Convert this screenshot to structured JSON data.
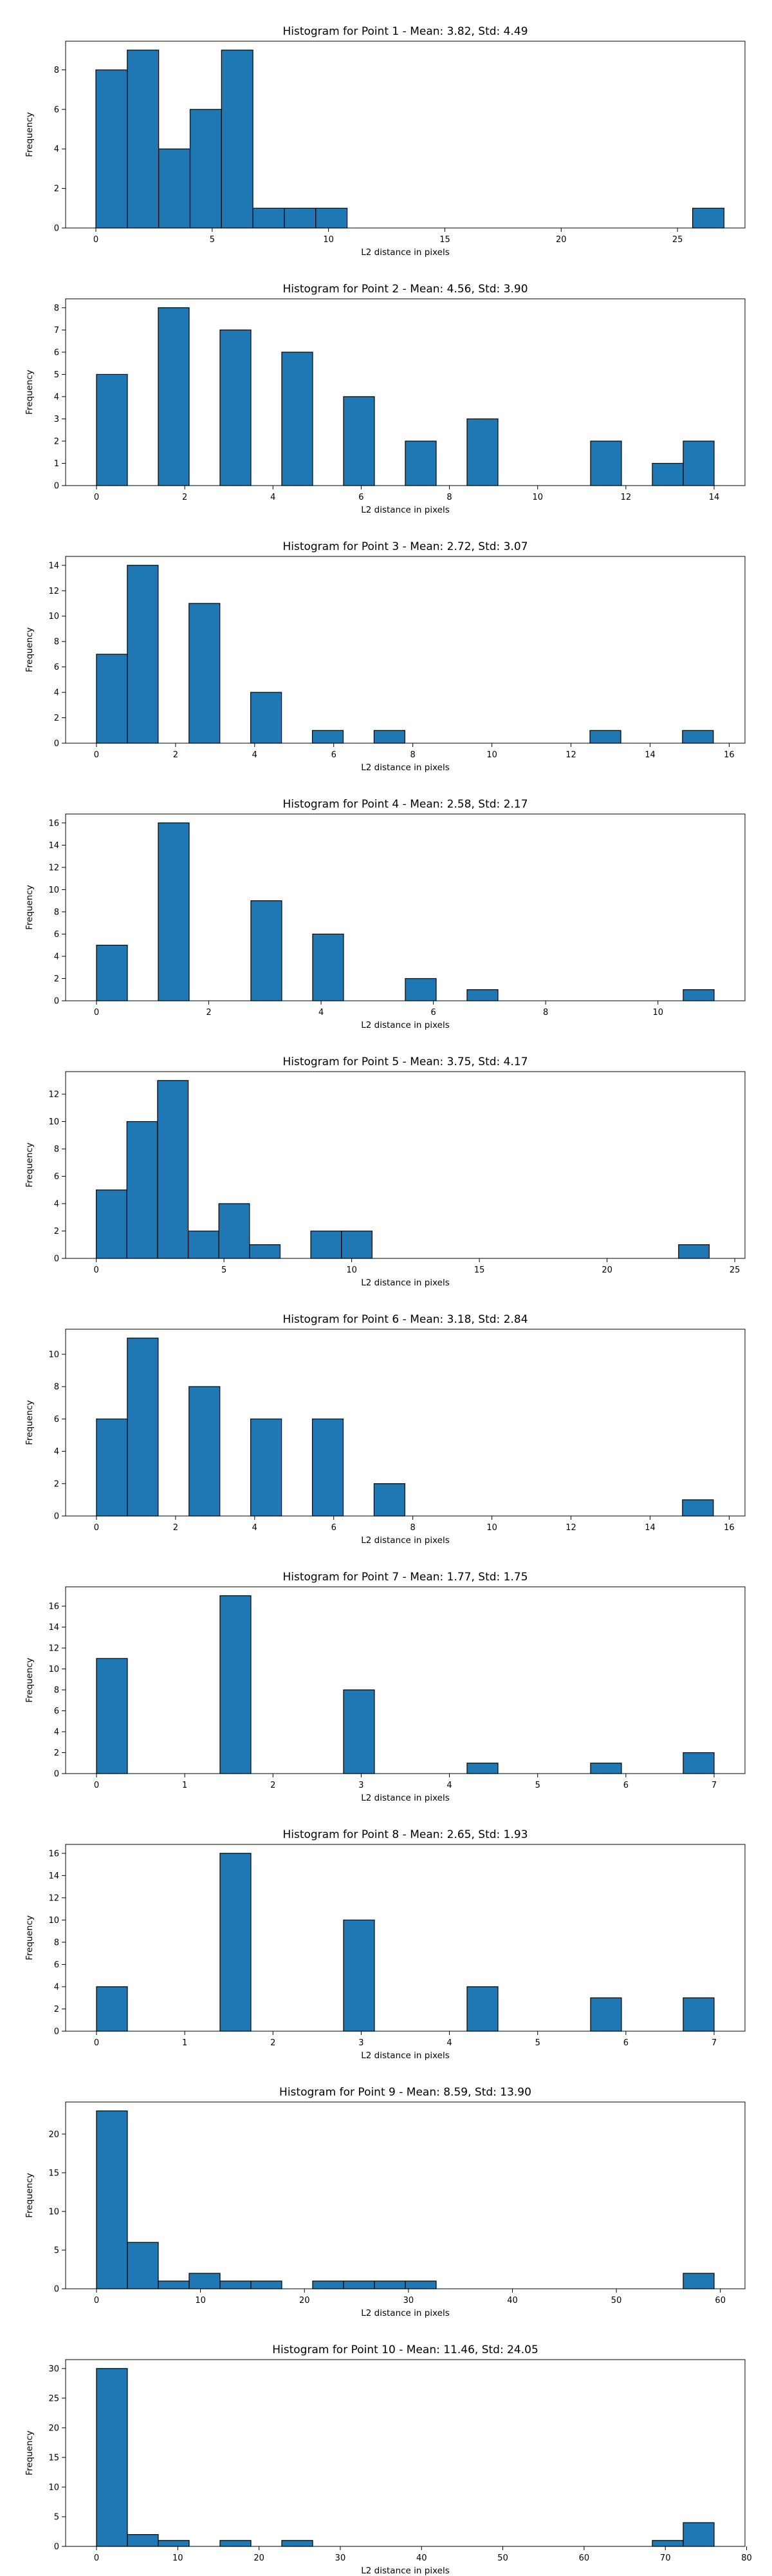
{
  "chart_data": [
    {
      "type": "bar",
      "title": "Histogram for Point 1 - Mean: 3.82, Std: 4.49",
      "xlabel": "L2 distance in pixels",
      "ylabel": "Frequency",
      "xlim": [
        -1.3,
        27.9
      ],
      "ylim": [
        0,
        9.45
      ],
      "xticks": [
        0,
        5,
        10,
        15,
        20,
        25
      ],
      "yticks": [
        0,
        2,
        4,
        6,
        8
      ],
      "bins": [
        {
          "x0": 0,
          "x1": 1.35,
          "count": 8
        },
        {
          "x0": 1.35,
          "x1": 2.7,
          "count": 9
        },
        {
          "x0": 2.7,
          "x1": 4.05,
          "count": 4
        },
        {
          "x0": 4.05,
          "x1": 5.4,
          "count": 6
        },
        {
          "x0": 5.4,
          "x1": 6.75,
          "count": 9
        },
        {
          "x0": 6.75,
          "x1": 8.1,
          "count": 1
        },
        {
          "x0": 8.1,
          "x1": 9.45,
          "count": 1
        },
        {
          "x0": 9.45,
          "x1": 10.8,
          "count": 1
        },
        {
          "x0": 25.65,
          "x1": 27.0,
          "count": 1
        }
      ]
    },
    {
      "type": "bar",
      "title": "Histogram for Point 2 - Mean: 4.56, Std: 3.90",
      "xlabel": "L2 distance in pixels",
      "ylabel": "Frequency",
      "xlim": [
        -0.7,
        14.7
      ],
      "ylim": [
        0,
        8.4
      ],
      "xticks": [
        0,
        2,
        4,
        6,
        8,
        10,
        12,
        14
      ],
      "yticks": [
        0,
        1,
        2,
        3,
        4,
        5,
        6,
        7,
        8
      ],
      "bins": [
        {
          "x0": 0,
          "x1": 0.7,
          "count": 5
        },
        {
          "x0": 1.4,
          "x1": 2.1,
          "count": 8
        },
        {
          "x0": 2.8,
          "x1": 3.5,
          "count": 7
        },
        {
          "x0": 4.2,
          "x1": 4.9,
          "count": 6
        },
        {
          "x0": 5.6,
          "x1": 6.3,
          "count": 4
        },
        {
          "x0": 7.0,
          "x1": 7.7,
          "count": 2
        },
        {
          "x0": 8.4,
          "x1": 9.1,
          "count": 3
        },
        {
          "x0": 11.2,
          "x1": 11.9,
          "count": 2
        },
        {
          "x0": 12.6,
          "x1": 13.3,
          "count": 1
        },
        {
          "x0": 13.3,
          "x1": 14.0,
          "count": 2
        }
      ]
    },
    {
      "type": "bar",
      "title": "Histogram for Point 3 - Mean: 2.72, Std: 3.07",
      "xlabel": "L2 distance in pixels",
      "ylabel": "Frequency",
      "xlim": [
        -0.78,
        16.4
      ],
      "ylim": [
        0,
        14.7
      ],
      "xticks": [
        0,
        2,
        4,
        6,
        8,
        10,
        12,
        14,
        16
      ],
      "yticks": [
        0,
        2,
        4,
        6,
        8,
        10,
        12,
        14
      ],
      "bins": [
        {
          "x0": 0,
          "x1": 0.78,
          "count": 7
        },
        {
          "x0": 0.78,
          "x1": 1.56,
          "count": 14
        },
        {
          "x0": 2.34,
          "x1": 3.12,
          "count": 11
        },
        {
          "x0": 3.9,
          "x1": 4.68,
          "count": 4
        },
        {
          "x0": 5.46,
          "x1": 6.24,
          "count": 1
        },
        {
          "x0": 7.02,
          "x1": 7.8,
          "count": 1
        },
        {
          "x0": 12.48,
          "x1": 13.26,
          "count": 1
        },
        {
          "x0": 14.82,
          "x1": 15.6,
          "count": 1
        }
      ]
    },
    {
      "type": "bar",
      "title": "Histogram for Point 4 - Mean: 2.58, Std: 2.17",
      "xlabel": "L2 distance in pixels",
      "ylabel": "Frequency",
      "xlim": [
        -0.55,
        11.55
      ],
      "ylim": [
        0,
        16.8
      ],
      "xticks": [
        0,
        2,
        4,
        6,
        8,
        10
      ],
      "yticks": [
        0,
        2,
        4,
        6,
        8,
        10,
        12,
        14,
        16
      ],
      "bins": [
        {
          "x0": 0,
          "x1": 0.55,
          "count": 5
        },
        {
          "x0": 1.1,
          "x1": 1.65,
          "count": 16
        },
        {
          "x0": 2.75,
          "x1": 3.3,
          "count": 9
        },
        {
          "x0": 3.85,
          "x1": 4.4,
          "count": 6
        },
        {
          "x0": 5.5,
          "x1": 6.05,
          "count": 2
        },
        {
          "x0": 6.6,
          "x1": 7.15,
          "count": 1
        },
        {
          "x0": 10.45,
          "x1": 11.0,
          "count": 1
        }
      ]
    },
    {
      "type": "bar",
      "title": "Histogram for Point 5 - Mean: 3.75, Std: 4.17",
      "xlabel": "L2 distance in pixels",
      "ylabel": "Frequency",
      "xlim": [
        -1.2,
        25.4
      ],
      "ylim": [
        0,
        13.65
      ],
      "xticks": [
        0,
        5,
        10,
        15,
        20,
        25
      ],
      "yticks": [
        0,
        2,
        4,
        6,
        8,
        10,
        12
      ],
      "bins": [
        {
          "x0": 0,
          "x1": 1.2,
          "count": 5
        },
        {
          "x0": 1.2,
          "x1": 2.4,
          "count": 10
        },
        {
          "x0": 2.4,
          "x1": 3.6,
          "count": 13
        },
        {
          "x0": 3.6,
          "x1": 4.8,
          "count": 2
        },
        {
          "x0": 4.8,
          "x1": 6.0,
          "count": 4
        },
        {
          "x0": 6.0,
          "x1": 7.2,
          "count": 1
        },
        {
          "x0": 8.4,
          "x1": 9.6,
          "count": 2
        },
        {
          "x0": 9.6,
          "x1": 10.8,
          "count": 2
        },
        {
          "x0": 22.8,
          "x1": 24.0,
          "count": 1
        }
      ]
    },
    {
      "type": "bar",
      "title": "Histogram for Point 6 - Mean: 3.18, Std: 2.84",
      "xlabel": "L2 distance in pixels",
      "ylabel": "Frequency",
      "xlim": [
        -0.78,
        16.4
      ],
      "ylim": [
        0,
        11.55
      ],
      "xticks": [
        0,
        2,
        4,
        6,
        8,
        10,
        12,
        14,
        16
      ],
      "yticks": [
        0,
        2,
        4,
        6,
        8,
        10
      ],
      "bins": [
        {
          "x0": 0,
          "x1": 0.78,
          "count": 6
        },
        {
          "x0": 0.78,
          "x1": 1.56,
          "count": 11
        },
        {
          "x0": 2.34,
          "x1": 3.12,
          "count": 8
        },
        {
          "x0": 3.9,
          "x1": 4.68,
          "count": 6
        },
        {
          "x0": 5.46,
          "x1": 6.24,
          "count": 6
        },
        {
          "x0": 7.02,
          "x1": 7.8,
          "count": 2
        },
        {
          "x0": 14.82,
          "x1": 15.6,
          "count": 1
        }
      ]
    },
    {
      "type": "bar",
      "title": "Histogram for Point 7 - Mean: 1.77, Std: 1.75",
      "xlabel": "L2 distance in pixels",
      "ylabel": "Frequency",
      "xlim": [
        -0.35,
        7.35
      ],
      "ylim": [
        0,
        17.85
      ],
      "xticks": [
        0,
        1,
        2,
        3,
        4,
        5,
        6,
        7
      ],
      "yticks": [
        0,
        2,
        4,
        6,
        8,
        10,
        12,
        14,
        16
      ],
      "bins": [
        {
          "x0": 0,
          "x1": 0.35,
          "count": 11
        },
        {
          "x0": 1.4,
          "x1": 1.75,
          "count": 17
        },
        {
          "x0": 2.8,
          "x1": 3.15,
          "count": 8
        },
        {
          "x0": 4.2,
          "x1": 4.55,
          "count": 1
        },
        {
          "x0": 5.6,
          "x1": 5.95,
          "count": 1
        },
        {
          "x0": 6.65,
          "x1": 7.0,
          "count": 2
        }
      ]
    },
    {
      "type": "bar",
      "title": "Histogram for Point 8 - Mean: 2.65, Std: 1.93",
      "xlabel": "L2 distance in pixels",
      "ylabel": "Frequency",
      "xlim": [
        -0.35,
        7.35
      ],
      "ylim": [
        0,
        16.8
      ],
      "xticks": [
        0,
        1,
        2,
        3,
        4,
        5,
        6,
        7
      ],
      "yticks": [
        0,
        2,
        4,
        6,
        8,
        10,
        12,
        14,
        16
      ],
      "bins": [
        {
          "x0": 0,
          "x1": 0.35,
          "count": 4
        },
        {
          "x0": 1.4,
          "x1": 1.75,
          "count": 16
        },
        {
          "x0": 2.8,
          "x1": 3.15,
          "count": 10
        },
        {
          "x0": 4.2,
          "x1": 4.55,
          "count": 4
        },
        {
          "x0": 5.6,
          "x1": 5.95,
          "count": 3
        },
        {
          "x0": 6.65,
          "x1": 7.0,
          "count": 3
        }
      ]
    },
    {
      "type": "bar",
      "title": "Histogram for Point 9 - Mean: 8.59, Std: 13.90",
      "xlabel": "L2 distance in pixels",
      "ylabel": "Frequency",
      "xlim": [
        -2.97,
        62.37
      ],
      "ylim": [
        0,
        24.15
      ],
      "xticks": [
        0,
        10,
        20,
        30,
        40,
        50,
        60
      ],
      "yticks": [
        0,
        5,
        10,
        15,
        20
      ],
      "bins": [
        {
          "x0": 0,
          "x1": 2.97,
          "count": 23
        },
        {
          "x0": 2.97,
          "x1": 5.94,
          "count": 6
        },
        {
          "x0": 5.94,
          "x1": 8.91,
          "count": 1
        },
        {
          "x0": 8.91,
          "x1": 11.88,
          "count": 2
        },
        {
          "x0": 11.88,
          "x1": 14.85,
          "count": 1
        },
        {
          "x0": 14.85,
          "x1": 17.82,
          "count": 1
        },
        {
          "x0": 20.79,
          "x1": 23.76,
          "count": 1
        },
        {
          "x0": 23.76,
          "x1": 26.73,
          "count": 1
        },
        {
          "x0": 26.73,
          "x1": 29.7,
          "count": 1
        },
        {
          "x0": 29.7,
          "x1": 32.67,
          "count": 1
        },
        {
          "x0": 56.43,
          "x1": 59.4,
          "count": 2
        }
      ]
    },
    {
      "type": "bar",
      "title": "Histogram for Point 10 - Mean: 11.46, Std: 24.05",
      "xlabel": "L2 distance in pixels",
      "ylabel": "Frequency",
      "xlim": [
        -3.8,
        79.8
      ],
      "ylim": [
        0,
        31.5
      ],
      "xticks": [
        0,
        10,
        20,
        30,
        40,
        50,
        60,
        70,
        80
      ],
      "yticks": [
        0,
        5,
        10,
        15,
        20,
        25,
        30
      ],
      "bins": [
        {
          "x0": 0,
          "x1": 3.8,
          "count": 30
        },
        {
          "x0": 3.8,
          "x1": 7.6,
          "count": 2
        },
        {
          "x0": 7.6,
          "x1": 11.4,
          "count": 1
        },
        {
          "x0": 15.2,
          "x1": 19.0,
          "count": 1
        },
        {
          "x0": 22.8,
          "x1": 26.6,
          "count": 1
        },
        {
          "x0": 68.4,
          "x1": 72.2,
          "count": 1
        },
        {
          "x0": 72.2,
          "x1": 76.0,
          "count": 4
        }
      ]
    }
  ]
}
